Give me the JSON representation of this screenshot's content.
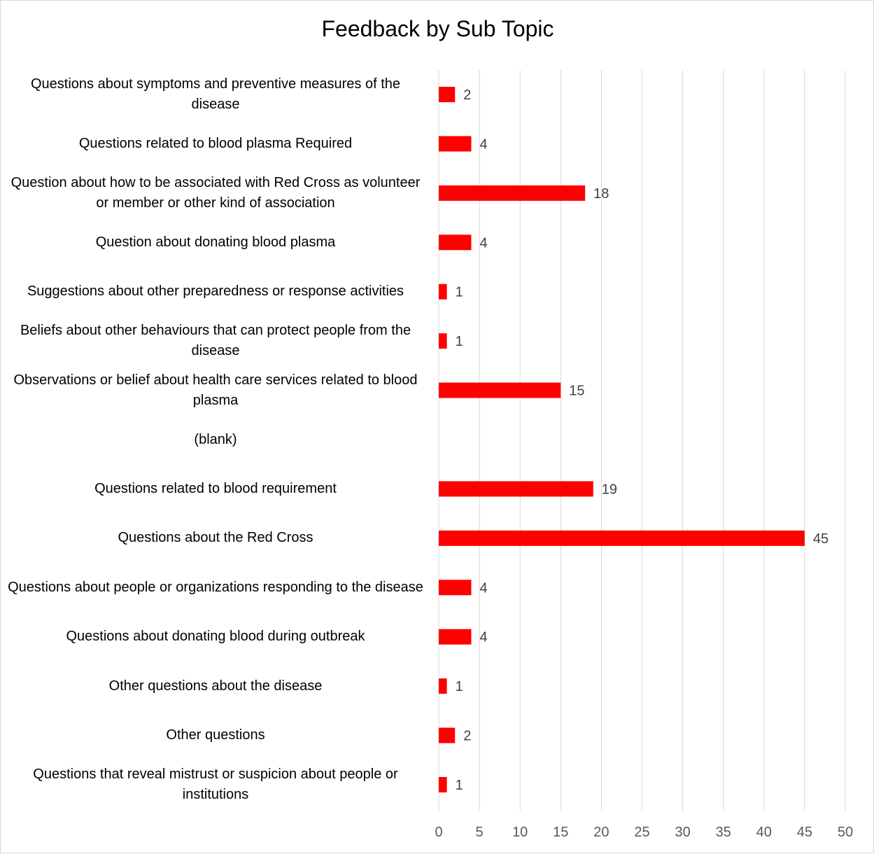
{
  "chart_data": {
    "type": "bar",
    "orientation": "horizontal",
    "title": "Feedback by Sub Topic",
    "categories": [
      "Questions about symptoms and preventive measures of the disease",
      "Questions related to blood plasma Required",
      "Question about how to be associated with Red Cross as volunteer or member or other kind of association",
      "Question about donating blood plasma",
      "Suggestions about other preparedness or response activities",
      "Beliefs about other behaviours that can protect people from the disease",
      "Observations or belief about health care services related to blood plasma",
      "(blank)",
      "Questions related to blood requirement",
      "Questions about the Red Cross",
      "Questions about people or organizations responding to the disease",
      "Questions about donating blood during outbreak",
      "Other questions about the disease",
      "Other questions",
      "Questions that reveal mistrust or suspicion about people or institutions"
    ],
    "values": [
      2,
      4,
      18,
      4,
      1,
      1,
      15,
      null,
      19,
      45,
      4,
      4,
      1,
      2,
      1
    ],
    "data_labels": [
      "2",
      "4",
      "18",
      "4",
      "1",
      "1",
      "15",
      "",
      "19",
      "45",
      "4",
      "4",
      "1",
      "2",
      "1"
    ],
    "xlim": [
      0,
      50
    ],
    "xticks": [
      "0",
      "5",
      "10",
      "15",
      "20",
      "25",
      "30",
      "35",
      "40",
      "45",
      "50"
    ],
    "grid": true,
    "legend": "none",
    "bar_color": "#ff0000"
  }
}
